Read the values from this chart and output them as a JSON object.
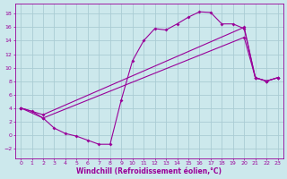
{
  "background_color": "#cce8ec",
  "grid_color": "#aaccd4",
  "line_color": "#990099",
  "xlabel": "Windchill (Refroidissement éolien,°C)",
  "xlim": [
    -0.5,
    23.5
  ],
  "ylim": [
    -3.5,
    19.5
  ],
  "xticks": [
    0,
    1,
    2,
    3,
    4,
    5,
    6,
    7,
    8,
    9,
    10,
    11,
    12,
    13,
    14,
    15,
    16,
    17,
    18,
    19,
    20,
    21,
    22,
    23
  ],
  "yticks": [
    -2,
    0,
    2,
    4,
    6,
    8,
    10,
    12,
    14,
    16,
    18
  ],
  "curve1_x": [
    0,
    1,
    2,
    3,
    4,
    5,
    6,
    7,
    8,
    9,
    10,
    11,
    12,
    13,
    14,
    15,
    16,
    17,
    18,
    19,
    20,
    21,
    22,
    23
  ],
  "curve1_y": [
    4.0,
    3.5,
    2.5,
    1.0,
    0.2,
    -0.2,
    -0.8,
    -1.4,
    -1.4,
    5.2,
    11.0,
    14.0,
    15.8,
    15.6,
    16.5,
    17.5,
    18.3,
    18.2,
    16.5,
    16.5,
    15.8,
    8.5,
    8.0,
    8.5
  ],
  "curve2_x": [
    0,
    2,
    20,
    21,
    22,
    23
  ],
  "curve2_y": [
    4.0,
    3.0,
    16.0,
    8.5,
    8.0,
    8.5
  ],
  "curve3_x": [
    0,
    2,
    20,
    21,
    22,
    23
  ],
  "curve3_y": [
    4.0,
    2.5,
    14.5,
    8.5,
    8.0,
    8.5
  ],
  "marker_size": 2.0,
  "line_width": 0.8,
  "tick_fontsize": 4.5,
  "xlabel_fontsize": 5.5
}
